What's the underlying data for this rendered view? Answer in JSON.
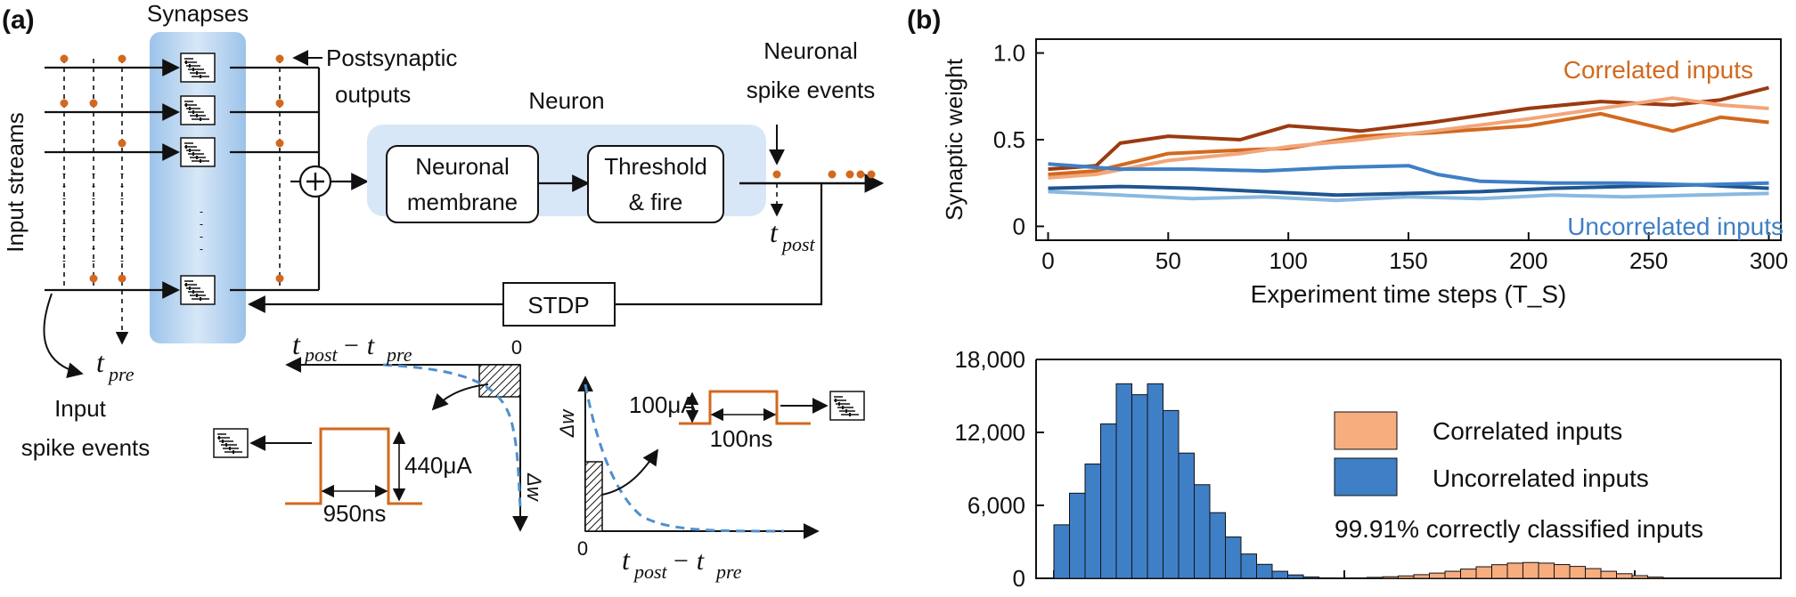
{
  "panel_a": {
    "label": "(a)",
    "synapses_label": "Synapses",
    "input_streams_label": "Input streams",
    "postsynaptic_label_1": "Postsynaptic",
    "postsynaptic_label_2": "outputs",
    "neuron_label": "Neuron",
    "neuronal_membrane_1": "Neuronal",
    "neuronal_membrane_2": "membrane",
    "threshold_1": "Threshold",
    "threshold_2": "& fire",
    "neuronal_spike_1": "Neuronal",
    "neuronal_spike_2": "spike events",
    "t_post": "t",
    "t_post_sub": "post",
    "t_pre": "t",
    "t_pre_sub": "pre",
    "stdp": "STDP",
    "input_spike_1": "Input",
    "input_spike_2": "spike events",
    "ltd_axis_label": "t",
    "ltd_axis_label_sub1": "post",
    "ltd_axis_label_mid": " − t",
    "ltd_axis_label_sub2": "pre",
    "ltd_zero": "0",
    "ltd_dw": "Δw",
    "ltd_amp": "440μA",
    "ltd_width": "950ns",
    "ltp_dw": "Δw",
    "ltp_zero": "0",
    "ltp_amp": "100μA",
    "ltp_width": "100ns",
    "ltp_axis_label": "t",
    "ltp_axis_label_sub1": "post",
    "ltp_axis_label_mid": " − t",
    "ltp_axis_label_sub2": "pre"
  },
  "panel_b": {
    "label": "(b)"
  },
  "colors": {
    "orange": "#d2691e",
    "blue": "#3f7fc6",
    "dark_orange": "#9b3a10",
    "light_orange": "#f2a67a",
    "dark_blue": "#1f5590",
    "light_blue": "#8ab8e0"
  },
  "chart_data": [
    {
      "type": "line",
      "xlabel": "Experiment time steps (T_S)",
      "ylabel": "Synaptic weight",
      "xlim": [
        -5,
        305
      ],
      "ylim": [
        -0.08,
        1.08
      ],
      "xticks": [
        0,
        50,
        100,
        150,
        200,
        250,
        300
      ],
      "yticks": [
        0,
        0.5,
        1.0
      ],
      "ytick_labels": [
        "0",
        "0.5",
        "1.0"
      ],
      "annotations": [
        "Correlated inputs",
        "Uncorrelated inputs"
      ],
      "series": [
        {
          "group": "Correlated inputs",
          "color": "#9b3a10",
          "x": [
            0,
            10,
            20,
            30,
            50,
            80,
            100,
            130,
            160,
            200,
            230,
            260,
            280,
            300
          ],
          "y": [
            0.33,
            0.34,
            0.35,
            0.48,
            0.52,
            0.5,
            0.58,
            0.55,
            0.6,
            0.68,
            0.72,
            0.7,
            0.73,
            0.8
          ]
        },
        {
          "group": "Correlated inputs",
          "color": "#d2691e",
          "x": [
            0,
            20,
            50,
            80,
            100,
            130,
            160,
            200,
            230,
            260,
            280,
            300
          ],
          "y": [
            0.3,
            0.32,
            0.42,
            0.44,
            0.45,
            0.52,
            0.54,
            0.58,
            0.65,
            0.55,
            0.63,
            0.6
          ]
        },
        {
          "group": "Correlated inputs",
          "color": "#f2a67a",
          "x": [
            0,
            20,
            50,
            80,
            100,
            130,
            160,
            200,
            230,
            260,
            280,
            300
          ],
          "y": [
            0.28,
            0.3,
            0.38,
            0.42,
            0.46,
            0.5,
            0.55,
            0.62,
            0.68,
            0.74,
            0.7,
            0.68
          ]
        },
        {
          "group": "Uncorrelated inputs",
          "color": "#1f5590",
          "x": [
            0,
            30,
            60,
            90,
            120,
            150,
            180,
            210,
            240,
            270,
            300
          ],
          "y": [
            0.22,
            0.23,
            0.22,
            0.2,
            0.18,
            0.19,
            0.2,
            0.22,
            0.23,
            0.24,
            0.22
          ]
        },
        {
          "group": "Uncorrelated inputs",
          "color": "#3f7fc6",
          "x": [
            0,
            30,
            60,
            90,
            120,
            150,
            162,
            180,
            210,
            240,
            270,
            300
          ],
          "y": [
            0.36,
            0.33,
            0.33,
            0.32,
            0.34,
            0.35,
            0.3,
            0.26,
            0.25,
            0.25,
            0.24,
            0.25
          ]
        },
        {
          "group": "Uncorrelated inputs",
          "color": "#8ab8e0",
          "x": [
            0,
            30,
            60,
            90,
            120,
            150,
            180,
            210,
            240,
            270,
            300
          ],
          "y": [
            0.2,
            0.18,
            0.16,
            0.17,
            0.15,
            0.17,
            0.16,
            0.18,
            0.17,
            0.18,
            0.19
          ]
        }
      ]
    },
    {
      "type": "bar",
      "ylim": [
        0,
        18000
      ],
      "yticks": [
        0,
        6000,
        12000,
        18000
      ],
      "ytick_labels": [
        "0",
        "6,000",
        "12,000",
        "18,000"
      ],
      "legend": [
        "Correlated inputs",
        "Uncorrelated inputs"
      ],
      "annotation": "99.91% correctly classified inputs",
      "series": [
        {
          "name": "Uncorrelated inputs",
          "color": "#3f7fc6",
          "values": [
            4400,
            7000,
            9400,
            12700,
            16000,
            15100,
            16000,
            13800,
            10300,
            7700,
            5400,
            3400,
            2000,
            1150,
            580,
            280,
            110,
            40,
            15
          ]
        },
        {
          "name": "Correlated inputs",
          "color": "#f8ad7f",
          "values": [
            10,
            20,
            40,
            80,
            130,
            200,
            300,
            430,
            580,
            760,
            950,
            1120,
            1250,
            1300,
            1250,
            1130,
            980,
            800,
            580,
            380,
            220,
            100
          ]
        }
      ]
    }
  ]
}
